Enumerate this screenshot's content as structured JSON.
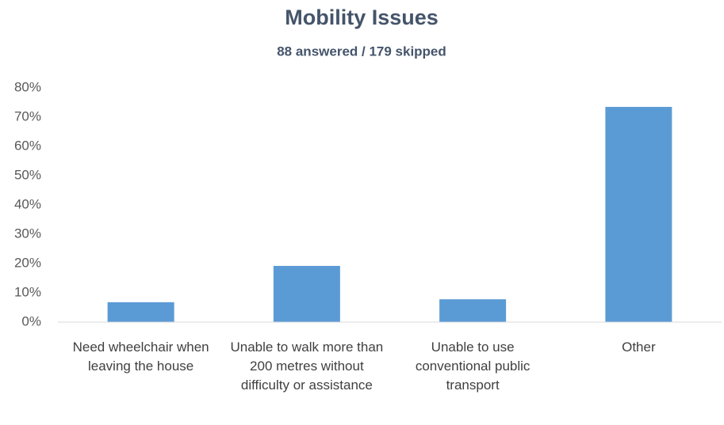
{
  "chart_data": {
    "type": "bar",
    "title": "Mobility Issues",
    "subtitle": "88 answered / 179 skipped",
    "categories": [
      "Need wheelchair when leaving the house",
      "Unable to walk more than 200 metres without difficulty or assistance",
      "Unable to use conventional public transport",
      "Other"
    ],
    "values": [
      6.8,
      19.2,
      7.8,
      73.5
    ],
    "color": "#5b9bd5",
    "ylim": [
      0,
      80
    ],
    "yticks": [
      {
        "value": 0,
        "label": "0%"
      },
      {
        "value": 10,
        "label": "10%"
      },
      {
        "value": 20,
        "label": "20%"
      },
      {
        "value": 30,
        "label": "30%"
      },
      {
        "value": 40,
        "label": "40%"
      },
      {
        "value": 50,
        "label": "50%"
      },
      {
        "value": 60,
        "label": "60%"
      },
      {
        "value": 70,
        "label": "70%"
      },
      {
        "value": 80,
        "label": "80%"
      }
    ],
    "grid": false
  }
}
